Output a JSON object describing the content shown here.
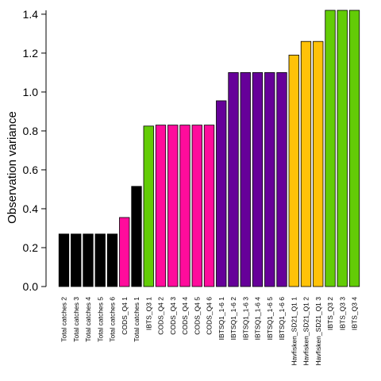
{
  "chart_data": {
    "type": "bar",
    "title": "",
    "xlabel": "",
    "ylabel": "Observation variance",
    "ylim": [
      0,
      1.42
    ],
    "yticks": [
      "0.0",
      "0.2",
      "0.4",
      "0.6",
      "0.8",
      "1.0",
      "1.2",
      "1.4"
    ],
    "grid": false,
    "categories": [
      "Total catches 2",
      "Total catches 3",
      "Total catches 4",
      "Total catches 5",
      "Total catches 6",
      "CODS_Q4 1",
      "Total catches 1",
      "IBTS_Q3 1",
      "CODS_Q4 2",
      "CODS_Q4 3",
      "CODS_Q4 4",
      "CODS_Q4 5",
      "CODS_Q4 6",
      "IBTSQ1_1-6 1",
      "IBTSQ1_1-6 2",
      "IBTSQ1_1-6 3",
      "IBTSQ1_1-6 4",
      "IBTSQ1_1-6 5",
      "IBTSQ1_1-6 6",
      "Havfisken_SD21_Q1 1",
      "Havfisken_SD21_Q1 2",
      "Havfisken_SD21_Q1 3",
      "IBTS_Q3 2",
      "IBTS_Q3 3",
      "IBTS_Q3 4"
    ],
    "values": [
      0.27,
      0.27,
      0.27,
      0.27,
      0.27,
      0.355,
      0.515,
      0.825,
      0.83,
      0.83,
      0.83,
      0.83,
      0.83,
      0.955,
      1.1,
      1.1,
      1.1,
      1.1,
      1.1,
      1.19,
      1.26,
      1.26,
      1.42,
      1.42,
      1.42
    ],
    "colors": [
      "#000000",
      "#000000",
      "#000000",
      "#000000",
      "#000000",
      "#ff0c9c",
      "#000000",
      "#63cc06",
      "#ff0c9c",
      "#ff0c9c",
      "#ff0c9c",
      "#ff0c9c",
      "#ff0c9c",
      "#660099",
      "#660099",
      "#660099",
      "#660099",
      "#660099",
      "#660099",
      "#ffc208",
      "#ffc208",
      "#ffc208",
      "#63cc06",
      "#63cc06",
      "#63cc06"
    ]
  }
}
